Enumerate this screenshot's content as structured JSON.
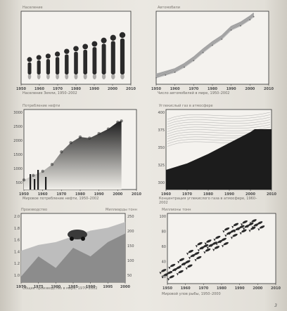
{
  "colors": {
    "paper": "#ebe8e2",
    "plot_bg": "#f4f2ee",
    "dark_ink": "#2a2a2a",
    "mid_gray": "#8c8c8c",
    "light_gray": "#bdbdbd"
  },
  "page": {
    "number": "3"
  },
  "chart_data": [
    {
      "type": "bar",
      "mark": "human-silhouettes",
      "title": "Население",
      "caption": "Население Земли, 1950–2002",
      "x_ticks": [
        "1950",
        "1960",
        "1970",
        "1980",
        "1990",
        "2000",
        "2010"
      ],
      "categories": [
        1950,
        1955,
        1960,
        1965,
        1970,
        1975,
        1980,
        1985,
        1990,
        1995,
        2000
      ],
      "values": [
        2.5,
        2.8,
        3.0,
        3.3,
        3.7,
        4.1,
        4.4,
        4.8,
        5.3,
        5.7,
        6.1
      ],
      "ylim": [
        0,
        7
      ]
    },
    {
      "type": "line",
      "mark": "car-ribbon",
      "title": "Автомобили",
      "caption": "Число автомобилей в мире, 1950–2002",
      "x_ticks": [
        "1950",
        "1960",
        "1970",
        "1980",
        "1990",
        "2000",
        "2010"
      ],
      "x": [
        1950,
        1955,
        1960,
        1965,
        1970,
        1975,
        1980,
        1985,
        1990,
        1995,
        2000,
        2002
      ],
      "values": [
        53,
        75,
        98,
        140,
        194,
        260,
        320,
        370,
        445,
        480,
        530,
        555
      ],
      "ylim": [
        0,
        600
      ]
    },
    {
      "type": "area",
      "mark": "smoke",
      "title": "Потребление нефти",
      "caption": "Мировое потребление нефти, 1950–2002",
      "x_ticks": [
        "1950",
        "1960",
        "1970",
        "1980",
        "1990",
        "2000",
        "2010"
      ],
      "y_ticks": [
        "3000",
        "2500",
        "2000",
        "1500",
        "1000",
        "500"
      ],
      "x": [
        1950,
        1955,
        1960,
        1965,
        1970,
        1975,
        1980,
        1985,
        1990,
        1995,
        2000,
        2002
      ],
      "values": [
        420,
        620,
        800,
        1100,
        1650,
        2050,
        2300,
        2250,
        2450,
        2650,
        2950,
        3000
      ],
      "ylim": [
        0,
        3500
      ]
    },
    {
      "type": "area",
      "mark": "wedge",
      "title": "Углекислый газ в атмосфере",
      "caption": "Концентрация углекислого газа в атмосфере, 1960–2002",
      "x_ticks": [
        "1960",
        "1970",
        "1980",
        "1990",
        "2000",
        "2010"
      ],
      "y_ticks": [
        "400",
        "375",
        "350",
        "325",
        "300"
      ],
      "x": [
        1960,
        1970,
        1980,
        1990,
        2000,
        2002
      ],
      "values": [
        317,
        326,
        339,
        354,
        369,
        373
      ],
      "ylim": [
        290,
        400
      ]
    },
    {
      "type": "area",
      "mark": "cash-flow",
      "title": "Производство",
      "title_right": "Миллиарды тонн",
      "caption": "Общее производство в мире, 1970–2002",
      "x_ticks": [
        "1970",
        "1975",
        "1980",
        "1985",
        "1990",
        "1995",
        "2000"
      ],
      "y_ticks_left": [
        "2.0",
        "1.8",
        "1.6",
        "1.4",
        "1.2",
        "1.0"
      ],
      "y_ticks_right": [
        "250",
        "200",
        "150",
        "100",
        "50"
      ],
      "series": [
        {
          "values": [
            1.45,
            1.55,
            1.6,
            1.7,
            1.8,
            1.85,
            1.95
          ]
        },
        {
          "values": [
            1.0,
            1.35,
            1.15,
            1.5,
            1.35,
            1.6,
            1.75
          ]
        }
      ],
      "x": [
        1970,
        1975,
        1980,
        1985,
        1990,
        1995,
        2000
      ]
    },
    {
      "type": "scatter",
      "mark": "fish",
      "title": "Миллионы тонн",
      "caption": "Мировой улов рыбы, 1950–2000",
      "x_ticks": [
        "1950",
        "1960",
        "1970",
        "1980",
        "1990",
        "2000",
        "2010"
      ],
      "y_ticks": [
        "100",
        "80",
        "60",
        "40",
        "20"
      ],
      "x": [
        1950,
        1955,
        1960,
        1965,
        1970,
        1975,
        1980,
        1985,
        1990,
        1995,
        2000
      ],
      "values": [
        20,
        28,
        37,
        50,
        62,
        66,
        72,
        85,
        92,
        96,
        98
      ],
      "ylim": [
        0,
        110
      ]
    }
  ]
}
